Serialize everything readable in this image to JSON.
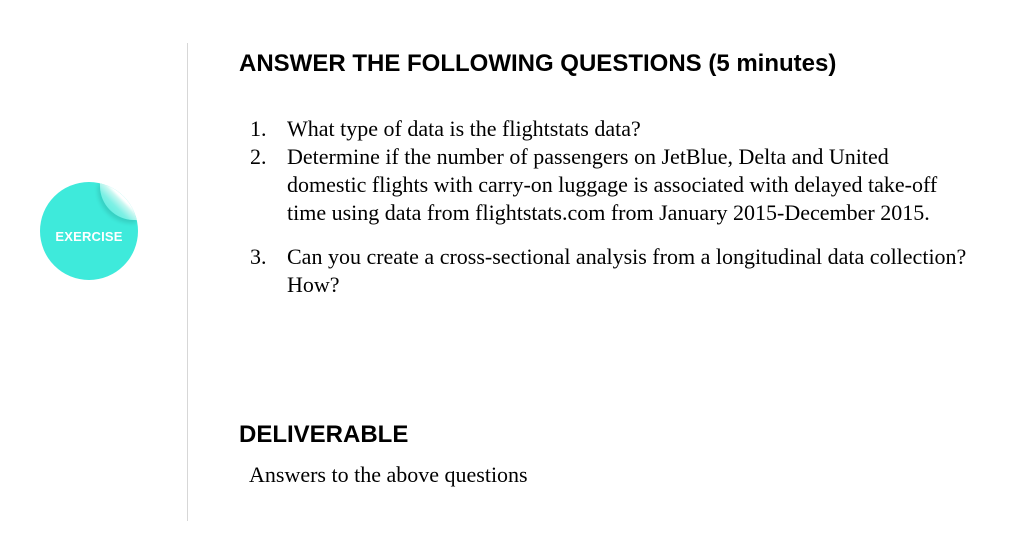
{
  "badge": {
    "label": "EXERCISE",
    "color": "#3eeadb"
  },
  "heading_questions": "ANSWER THE FOLLOWING QUESTIONS (5 minutes)",
  "questions": [
    {
      "number": "1.",
      "text": "What type of data is the flightstats data?"
    },
    {
      "number": "2.",
      "text": "Determine if the number of passengers on JetBlue, Delta and United domestic flights with carry-on luggage is associated with delayed take-off time using data from flightstats.com from January 2015-December 2015."
    },
    {
      "number": "3.",
      "text": "Can you create a cross-sectional analysis from a longitudinal data collection? How?"
    }
  ],
  "heading_deliverable": "DELIVERABLE",
  "deliverable_text": "Answers to the above questions"
}
